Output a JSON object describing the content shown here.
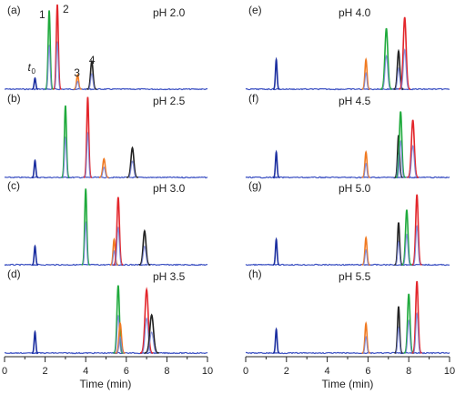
{
  "chart_data": {
    "type": "line",
    "x_axis": {
      "label": "Time (min)",
      "range": [
        0,
        10
      ],
      "ticks": [
        "0",
        "2",
        "4",
        "6",
        "8",
        "10"
      ]
    },
    "t0_label": "t",
    "t0_subscript": "0",
    "t0_time": 1.5,
    "peak_colors": {
      "t0": "#1c2fa0",
      "1": "#1faa3c",
      "2": "#e3262b",
      "3": "#f07a22",
      "4": "#222222",
      "baseline": "#3a4fc2"
    },
    "panels": [
      {
        "label": "(a)",
        "ph": "pH 2.0",
        "column": 0,
        "row": 0,
        "peak_numbers": [
          "1",
          "2",
          "3",
          "4"
        ],
        "peaks": [
          {
            "id": "t0",
            "time": 1.5,
            "height": 0.13,
            "width": 0.04
          },
          {
            "id": "1",
            "time": 2.2,
            "height": 0.93,
            "width": 0.05
          },
          {
            "id": "2",
            "time": 2.6,
            "height": 1.0,
            "width": 0.05
          },
          {
            "id": "3",
            "time": 3.6,
            "height": 0.17,
            "width": 0.05
          },
          {
            "id": "4",
            "time": 4.3,
            "height": 0.33,
            "width": 0.06
          }
        ]
      },
      {
        "label": "(b)",
        "ph": "pH 2.5",
        "column": 0,
        "row": 1,
        "peaks": [
          {
            "id": "t0",
            "time": 1.5,
            "height": 0.2,
            "width": 0.04
          },
          {
            "id": "1",
            "time": 3.0,
            "height": 0.85,
            "width": 0.05
          },
          {
            "id": "2",
            "time": 4.1,
            "height": 0.95,
            "width": 0.05
          },
          {
            "id": "3",
            "time": 4.9,
            "height": 0.22,
            "width": 0.06
          },
          {
            "id": "4",
            "time": 6.3,
            "height": 0.35,
            "width": 0.07
          }
        ]
      },
      {
        "label": "(c)",
        "ph": "pH 3.0",
        "column": 0,
        "row": 2,
        "peaks": [
          {
            "id": "t0",
            "time": 1.5,
            "height": 0.22,
            "width": 0.04
          },
          {
            "id": "1",
            "time": 4.0,
            "height": 0.9,
            "width": 0.05
          },
          {
            "id": "3",
            "time": 5.4,
            "height": 0.3,
            "width": 0.05
          },
          {
            "id": "2",
            "time": 5.6,
            "height": 0.8,
            "width": 0.06
          },
          {
            "id": "4",
            "time": 6.9,
            "height": 0.4,
            "width": 0.07
          }
        ]
      },
      {
        "label": "(d)",
        "ph": "pH 3.5",
        "column": 0,
        "row": 3,
        "peaks": [
          {
            "id": "t0",
            "time": 1.5,
            "height": 0.25,
            "width": 0.04
          },
          {
            "id": "1",
            "time": 5.6,
            "height": 0.8,
            "width": 0.06
          },
          {
            "id": "3",
            "time": 5.7,
            "height": 0.35,
            "width": 0.06
          },
          {
            "id": "2",
            "time": 7.0,
            "height": 0.75,
            "width": 0.08
          },
          {
            "id": "4",
            "time": 7.25,
            "height": 0.45,
            "width": 0.09
          }
        ]
      },
      {
        "label": "(e)",
        "ph": "pH 4.0",
        "column": 1,
        "row": 0,
        "peaks": [
          {
            "id": "t0",
            "time": 1.5,
            "height": 0.35,
            "width": 0.04
          },
          {
            "id": "3",
            "time": 5.9,
            "height": 0.35,
            "width": 0.05
          },
          {
            "id": "1",
            "time": 6.9,
            "height": 0.72,
            "width": 0.07
          },
          {
            "id": "4",
            "time": 7.5,
            "height": 0.45,
            "width": 0.06
          },
          {
            "id": "2",
            "time": 7.8,
            "height": 0.85,
            "width": 0.07
          }
        ]
      },
      {
        "label": "(f)",
        "ph": "pH 4.5",
        "column": 1,
        "row": 1,
        "peaks": [
          {
            "id": "t0",
            "time": 1.5,
            "height": 0.3,
            "width": 0.04
          },
          {
            "id": "3",
            "time": 5.9,
            "height": 0.3,
            "width": 0.05
          },
          {
            "id": "4",
            "time": 7.5,
            "height": 0.5,
            "width": 0.05
          },
          {
            "id": "1",
            "time": 7.6,
            "height": 0.78,
            "width": 0.06
          },
          {
            "id": "2",
            "time": 8.2,
            "height": 0.68,
            "width": 0.07
          }
        ]
      },
      {
        "label": "(g)",
        "ph": "pH 5.0",
        "column": 1,
        "row": 2,
        "peaks": [
          {
            "id": "t0",
            "time": 1.5,
            "height": 0.3,
            "width": 0.04
          },
          {
            "id": "3",
            "time": 5.9,
            "height": 0.32,
            "width": 0.05
          },
          {
            "id": "4",
            "time": 7.5,
            "height": 0.5,
            "width": 0.05
          },
          {
            "id": "1",
            "time": 7.9,
            "height": 0.65,
            "width": 0.06
          },
          {
            "id": "2",
            "time": 8.4,
            "height": 0.83,
            "width": 0.06
          }
        ]
      },
      {
        "label": "(h)",
        "ph": "pH 5.5",
        "column": 1,
        "row": 3,
        "peaks": [
          {
            "id": "t0",
            "time": 1.5,
            "height": 0.28,
            "width": 0.04
          },
          {
            "id": "3",
            "time": 5.9,
            "height": 0.35,
            "width": 0.05
          },
          {
            "id": "4",
            "time": 7.5,
            "height": 0.55,
            "width": 0.05
          },
          {
            "id": "1",
            "time": 8.0,
            "height": 0.7,
            "width": 0.06
          },
          {
            "id": "2",
            "time": 8.4,
            "height": 0.85,
            "width": 0.06
          }
        ]
      }
    ]
  }
}
